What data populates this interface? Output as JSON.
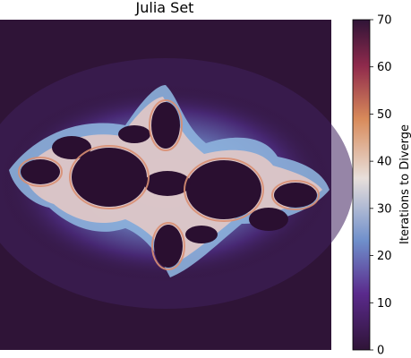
{
  "chart_data": {
    "type": "heatmap",
    "title": "Julia Set",
    "xlabel": "",
    "ylabel": "",
    "axes_visible": false,
    "colormap": "twilight_shifted",
    "colormap_stops": [
      "#2f1437",
      "#5a2a8c",
      "#6f8fcb",
      "#e8dfdb",
      "#d88a5a",
      "#8f2a4c",
      "#2f1437"
    ],
    "colorbar": {
      "label": "Iterations to Diverge",
      "range": [
        0,
        70
      ],
      "ticks": [
        0,
        10,
        20,
        30,
        40,
        50,
        60,
        70
      ],
      "tick_labels": [
        "0",
        "10",
        "20",
        "30",
        "40",
        "50",
        "60",
        "70"
      ]
    },
    "background_value": 2,
    "interior_value": 70,
    "fractal_shape": "dendrite-like Julia set with two large dark interior lobes, spiral arms, light blue halo near boundary"
  }
}
